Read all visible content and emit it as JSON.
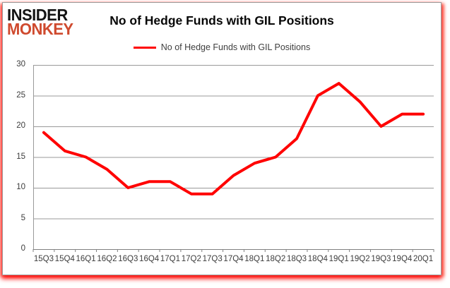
{
  "logo": {
    "line1": "INSIDER",
    "line2": "MONKEY"
  },
  "header": {
    "title": "No of Hedge Funds with GIL Positions"
  },
  "legend": {
    "label": "No of Hedge Funds with GIL Positions"
  },
  "colors": {
    "line": "#ff0000",
    "grid": "#999999",
    "axis": "#808080",
    "axis_text": "#3c3c3c",
    "logo_black": "#141414",
    "logo_red": "#cf4a2e",
    "border_glow": "#ff0000"
  },
  "chart_data": {
    "type": "line",
    "title": "No of Hedge Funds with GIL Positions",
    "categories": [
      "15Q3",
      "15Q4",
      "16Q1",
      "16Q2",
      "16Q3",
      "16Q4",
      "17Q1",
      "17Q2",
      "17Q3",
      "17Q4",
      "18Q1",
      "18Q2",
      "18Q3",
      "18Q4",
      "19Q1",
      "19Q2",
      "19Q3",
      "19Q4",
      "20Q1"
    ],
    "series": [
      {
        "name": "No of Hedge Funds with GIL Positions",
        "values": [
          19,
          16,
          15,
          13,
          10,
          11,
          11,
          9,
          9,
          12,
          14,
          15,
          18,
          25,
          27,
          24,
          20,
          22,
          22
        ]
      }
    ],
    "xlabel": "",
    "ylabel": "",
    "ylim": [
      0,
      30
    ],
    "ytick_step": 5,
    "grid": true,
    "legend_position": "top-center"
  }
}
